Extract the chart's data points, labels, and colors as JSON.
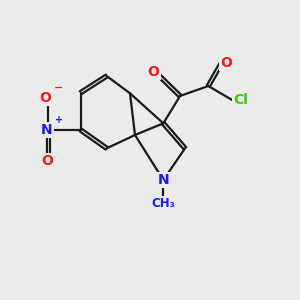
{
  "bg_color": "#ebebeb",
  "bond_color": "#1a1a1a",
  "bond_width": 1.6,
  "dbo": 0.055,
  "atom_colors": {
    "N": "#1a1aff",
    "O": "#ff1a1a",
    "Cl": "#33cc00"
  },
  "font_size_atom": 10,
  "font_size_small": 8.5
}
